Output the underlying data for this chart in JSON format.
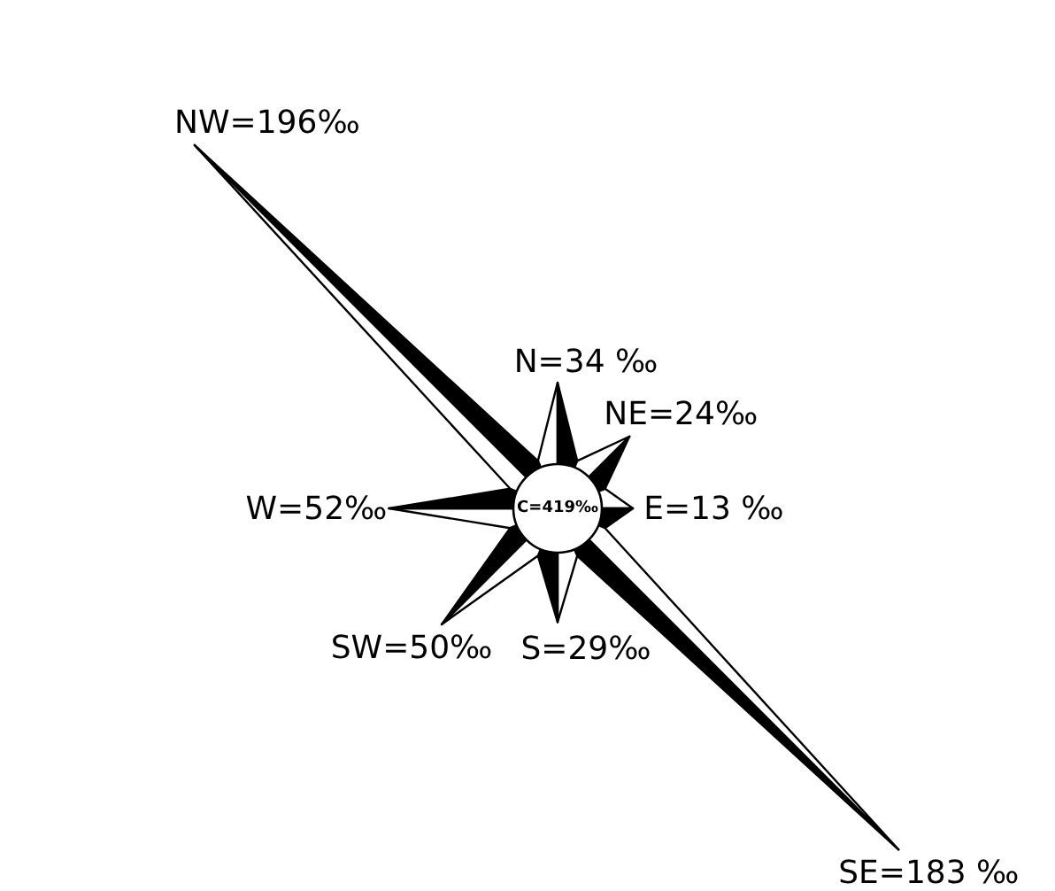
{
  "chart_data": {
    "type": "other",
    "categories": [
      "N",
      "NE",
      "E",
      "SE",
      "S",
      "SW",
      "W",
      "NW"
    ],
    "series": [
      {
        "color": "#000000",
        "values": [
          34,
          24,
          13,
          183,
          29,
          50,
          52,
          196
        ],
        "value_labels": [
          "=34 ‰",
          "=24‰",
          "=13 ‰",
          "=183 ‰",
          "=29‰",
          "=50‰",
          "=52‰",
          "=196‰"
        ]
      }
    ],
    "annotations": [
      "C=419‰"
    ]
  }
}
